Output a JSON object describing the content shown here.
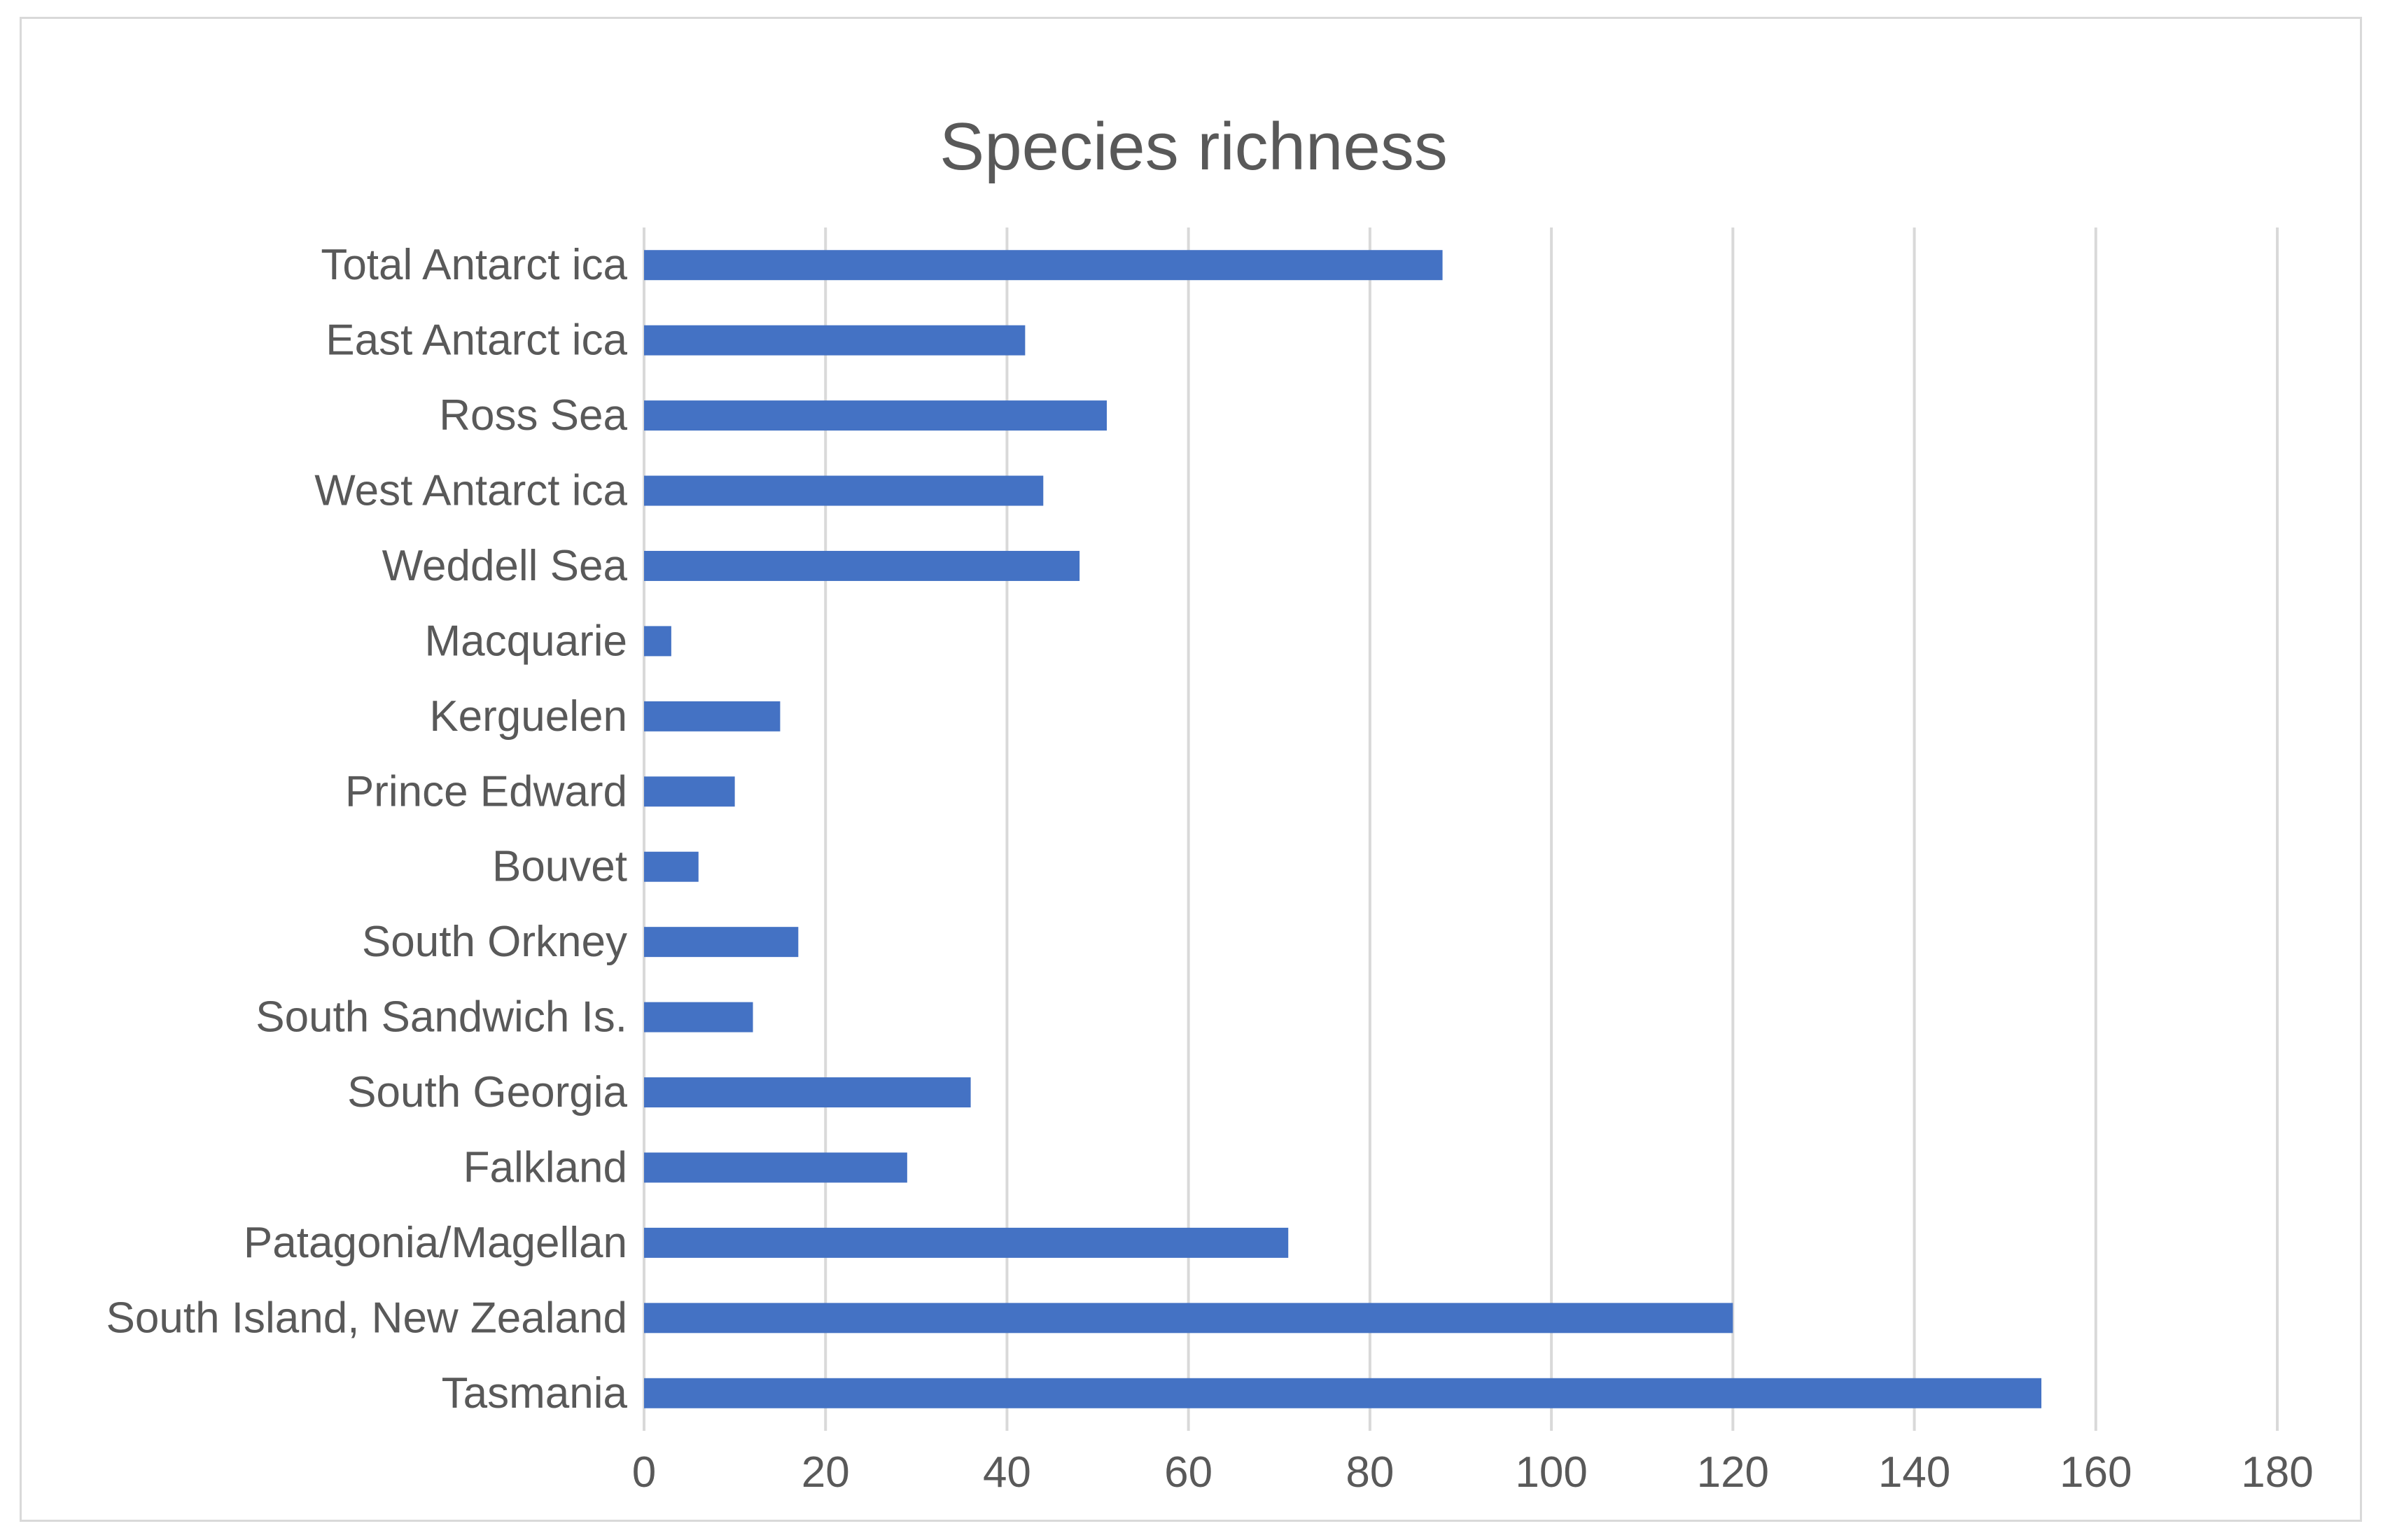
{
  "chart_data": {
    "type": "bar",
    "orientation": "horizontal",
    "title": "Species richness",
    "xlabel": "",
    "ylabel": "",
    "categories": [
      "Total Antarct ica",
      "East Antarct ica",
      "Ross Sea",
      "West Antarct ica",
      "Weddell Sea",
      "Macquarie",
      "Kerguelen",
      "Prince Edward",
      "Bouvet",
      "South Orkney",
      "South Sandwich Is.",
      "South Georgia",
      "Falkland",
      "Patagonia/Magellan",
      "South Island, New Zealand",
      "Tasmania"
    ],
    "values": [
      88,
      42,
      51,
      44,
      48,
      3,
      15,
      10,
      6,
      17,
      12,
      36,
      29,
      71,
      120,
      154
    ],
    "xlim": [
      0,
      180
    ],
    "xticks": [
      "0",
      "20",
      "40",
      "60",
      "80",
      "100",
      "120",
      "140",
      "160",
      "180"
    ],
    "grid": "vertical",
    "legend": "none",
    "colors": {
      "bar": "#4472c4",
      "grid": "#d9d9d9",
      "text": "#595959"
    }
  }
}
